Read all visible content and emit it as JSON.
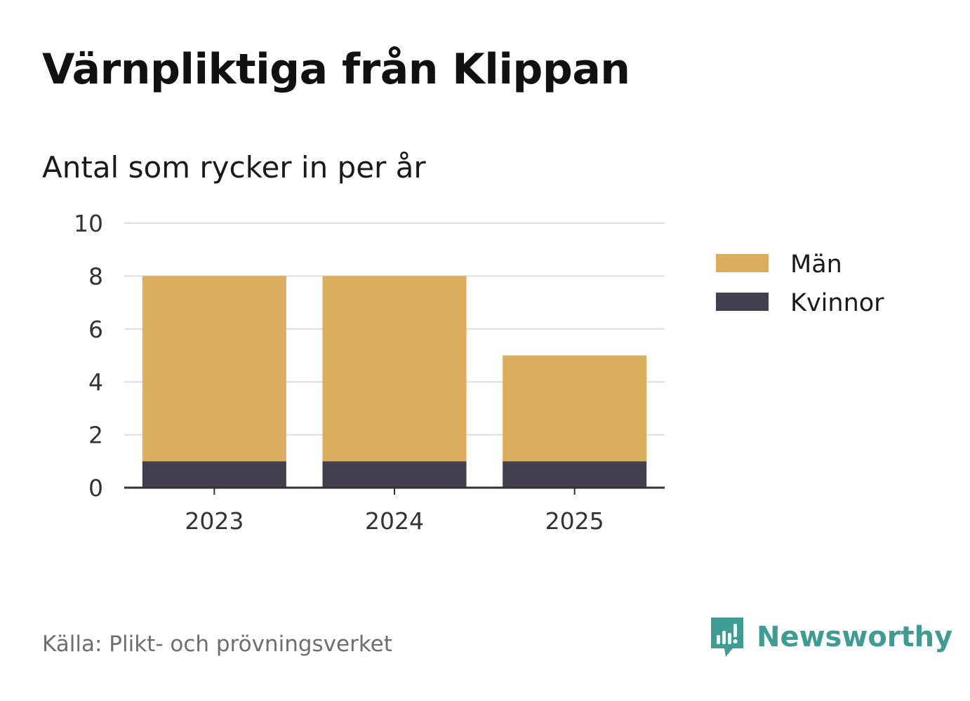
{
  "title": "Värnpliktiga från Klippan",
  "subtitle": "Antal som rycker in per år",
  "source": "Källa: Plikt- och prövningsverket",
  "brand": {
    "name": "Newsworthy",
    "icon": "newsworthy-logo-icon",
    "color": "#3f9c92"
  },
  "chart_data": {
    "type": "bar",
    "stacked": true,
    "categories": [
      "2023",
      "2024",
      "2025"
    ],
    "series": [
      {
        "name": "Kvinnor",
        "values": [
          1,
          1,
          1
        ],
        "color": "#433f4f"
      },
      {
        "name": "Män",
        "values": [
          7,
          7,
          4
        ],
        "color": "#dbad5c"
      }
    ],
    "legend_order": [
      "Män",
      "Kvinnor"
    ],
    "legend_position": "right",
    "ylim": [
      0,
      10
    ],
    "yticks": [
      0,
      2,
      4,
      6,
      8,
      10
    ],
    "grid": true,
    "xlabel": "",
    "ylabel": ""
  }
}
